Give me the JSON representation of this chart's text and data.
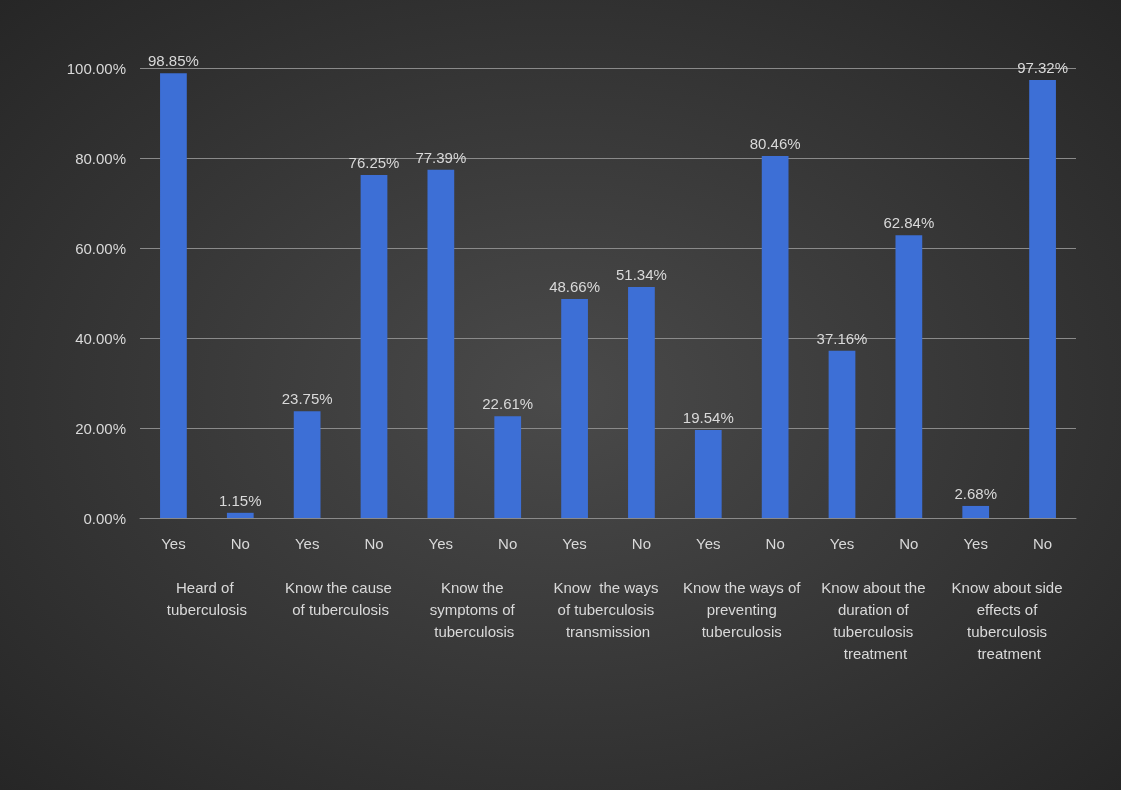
{
  "chart_data": {
    "type": "bar",
    "categories": [
      "Yes",
      "No",
      "Yes",
      "No",
      "Yes",
      "No",
      "Yes",
      "No",
      "Yes",
      "No",
      "Yes",
      "No",
      "Yes",
      "No"
    ],
    "values": [
      98.85,
      1.15,
      23.75,
      76.25,
      77.39,
      22.61,
      48.66,
      51.34,
      19.54,
      80.46,
      37.16,
      62.84,
      2.68,
      97.32
    ],
    "value_labels": [
      "98.85%",
      "1.15%",
      "23.75%",
      "76.25%",
      "77.39%",
      "22.61%",
      "48.66%",
      "51.34%",
      "19.54%",
      "80.46%",
      "37.16%",
      "62.84%",
      "2.68%",
      "97.32%"
    ],
    "color": "#3d6fd6",
    "annotations": [
      "Heard of tuberculosis",
      "Know the cause of tuberculosis",
      "Know the symptoms of tuberculosis",
      "Know  the ways of tuberculosis transmission",
      "Know the ways of preventing tuberculosis",
      "Know about the duration of tuberculosis treatment",
      "Know about side effects of tuberculosis treatment"
    ],
    "ylim": [
      0,
      100
    ],
    "yticks": [
      {
        "value": 0,
        "label": "0.00%"
      },
      {
        "value": 20,
        "label": "20.00%"
      },
      {
        "value": 40,
        "label": "40.00%"
      },
      {
        "value": 60,
        "label": "60.00%"
      },
      {
        "value": 80,
        "label": "80.00%"
      },
      {
        "value": 100,
        "label": "100.00%"
      }
    ],
    "grid": "y"
  }
}
